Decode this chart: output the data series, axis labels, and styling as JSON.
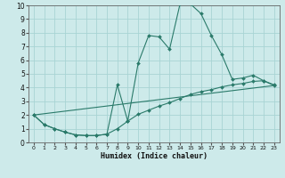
{
  "xlabel": "Humidex (Indice chaleur)",
  "bg_color": "#cdeaea",
  "grid_color": "#a8d4d4",
  "line_color": "#2a7a6a",
  "xlim": [
    -0.5,
    23.5
  ],
  "ylim": [
    0,
    10
  ],
  "xticks": [
    0,
    1,
    2,
    3,
    4,
    5,
    6,
    7,
    8,
    9,
    10,
    11,
    12,
    13,
    14,
    15,
    16,
    17,
    18,
    19,
    20,
    21,
    22,
    23
  ],
  "yticks": [
    0,
    1,
    2,
    3,
    4,
    5,
    6,
    7,
    8,
    9,
    10
  ],
  "curve1_x": [
    0,
    1,
    2,
    3,
    4,
    5,
    6,
    7,
    8,
    9,
    10,
    11,
    12,
    13,
    14,
    15,
    16,
    17,
    18,
    19,
    20,
    21,
    22,
    23
  ],
  "curve1_y": [
    2.0,
    1.3,
    1.0,
    0.75,
    0.55,
    0.5,
    0.5,
    0.6,
    4.2,
    1.55,
    5.8,
    7.8,
    7.7,
    6.8,
    10.1,
    10.1,
    9.4,
    7.8,
    6.4,
    4.6,
    4.7,
    4.9,
    4.5,
    4.2
  ],
  "curve2_x": [
    0,
    1,
    2,
    3,
    4,
    5,
    6,
    7,
    8,
    9,
    10,
    11,
    12,
    13,
    14,
    15,
    16,
    17,
    18,
    19,
    20,
    21,
    22,
    23
  ],
  "curve2_y": [
    2.0,
    1.3,
    1.0,
    0.75,
    0.55,
    0.5,
    0.5,
    0.6,
    1.0,
    1.55,
    2.05,
    2.35,
    2.65,
    2.9,
    3.2,
    3.5,
    3.7,
    3.85,
    4.05,
    4.2,
    4.3,
    4.45,
    4.5,
    4.15
  ],
  "curve3_x": [
    0,
    23
  ],
  "curve3_y": [
    2.0,
    4.15
  ]
}
